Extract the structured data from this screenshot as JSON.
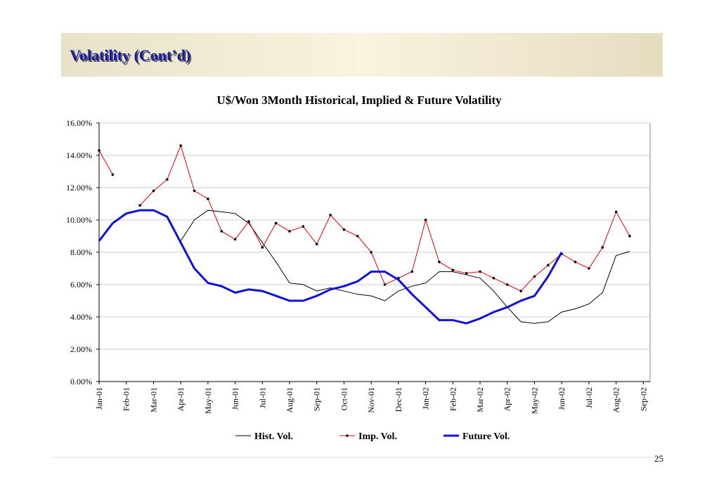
{
  "slide_title": "Volatility (Cont’d)",
  "page_number": "25",
  "chart_data": {
    "type": "line",
    "title": "U$/Won 3Month Historical, Implied & Future Volatility",
    "x": [
      0,
      0.5,
      1,
      1.5,
      2,
      2.5,
      3,
      3.5,
      4,
      4.5,
      5,
      5.5,
      6,
      6.5,
      7,
      7.5,
      8,
      8.5,
      9,
      9.5,
      10,
      10.5,
      11,
      11.5,
      12,
      12.5,
      13,
      13.5,
      14,
      14.5,
      15,
      15.5,
      16,
      16.5,
      17,
      17.5,
      18,
      18.5,
      19,
      19.5,
      20
    ],
    "xlim": [
      0,
      20.25
    ],
    "xticks": [
      {
        "value": 0,
        "label": "Jan-01"
      },
      {
        "value": 1,
        "label": "Feb-01"
      },
      {
        "value": 2,
        "label": "Mar-01"
      },
      {
        "value": 3,
        "label": "Apr-01"
      },
      {
        "value": 4,
        "label": "May-01"
      },
      {
        "value": 5,
        "label": "Jun-01"
      },
      {
        "value": 6,
        "label": "Jul-01"
      },
      {
        "value": 7,
        "label": "Aug-01"
      },
      {
        "value": 8,
        "label": "Sep-01"
      },
      {
        "value": 9,
        "label": "Oct-01"
      },
      {
        "value": 10,
        "label": "Nov-01"
      },
      {
        "value": 11,
        "label": "Dec-01"
      },
      {
        "value": 12,
        "label": "Jan-02"
      },
      {
        "value": 13,
        "label": "Feb-02"
      },
      {
        "value": 14,
        "label": "Mar-02"
      },
      {
        "value": 15,
        "label": "Apr-02"
      },
      {
        "value": 16,
        "label": "May-02"
      },
      {
        "value": 17,
        "label": "Jun-02"
      },
      {
        "value": 18,
        "label": "Jul-02"
      },
      {
        "value": 19,
        "label": "Aug-02"
      },
      {
        "value": 20,
        "label": "Sep-02"
      }
    ],
    "ylim": [
      0,
      16
    ],
    "yticks": [
      {
        "value": 0,
        "label": "0.00%"
      },
      {
        "value": 2,
        "label": "2.00%"
      },
      {
        "value": 4,
        "label": "4.00%"
      },
      {
        "value": 6,
        "label": "6.00%"
      },
      {
        "value": 8,
        "label": "8.00%"
      },
      {
        "value": 10,
        "label": "10.00%"
      },
      {
        "value": 12,
        "label": "12.00%"
      },
      {
        "value": 14,
        "label": "14.00%"
      },
      {
        "value": 16,
        "label": "16.00%"
      }
    ],
    "grid": true,
    "series": [
      {
        "name": "Hist. Vol.",
        "color": "#000000",
        "values": [
          null,
          null,
          null,
          null,
          null,
          null,
          8.7,
          10.0,
          10.6,
          10.5,
          10.4,
          9.8,
          8.6,
          7.4,
          6.1,
          6.0,
          5.6,
          5.8,
          5.6,
          5.4,
          5.3,
          5.0,
          5.6,
          5.9,
          6.1,
          6.8,
          6.8,
          6.6,
          6.4,
          5.6,
          4.6,
          3.7,
          3.6,
          3.7,
          4.3,
          4.5,
          4.8,
          5.5,
          7.8,
          8.05,
          null
        ]
      },
      {
        "name": "Imp. Vol.",
        "color": "#e00000",
        "values": [
          14.3,
          12.8,
          null,
          10.9,
          11.8,
          12.5,
          14.6,
          11.8,
          11.3,
          9.3,
          8.8,
          9.9,
          8.3,
          9.8,
          9.3,
          9.6,
          8.5,
          10.3,
          9.4,
          9.0,
          8.0,
          6.0,
          6.4,
          6.8,
          10.0,
          7.4,
          6.9,
          6.7,
          6.8,
          6.4,
          6.0,
          5.6,
          6.5,
          7.2,
          7.9,
          7.4,
          7.0,
          8.3,
          10.5,
          9.0,
          null
        ]
      },
      {
        "name": "Future Vol.",
        "color": "#1010d8",
        "values": [
          8.7,
          9.8,
          10.4,
          10.6,
          10.6,
          10.2,
          8.6,
          7.0,
          6.1,
          5.9,
          5.5,
          5.7,
          5.6,
          5.3,
          5.0,
          5.0,
          5.3,
          5.7,
          5.9,
          6.2,
          6.8,
          6.8,
          6.3,
          5.4,
          4.6,
          3.8,
          3.8,
          3.6,
          3.9,
          4.3,
          4.6,
          5.0,
          5.3,
          6.5,
          8.0,
          null,
          null,
          null,
          null,
          null,
          null
        ]
      }
    ]
  }
}
